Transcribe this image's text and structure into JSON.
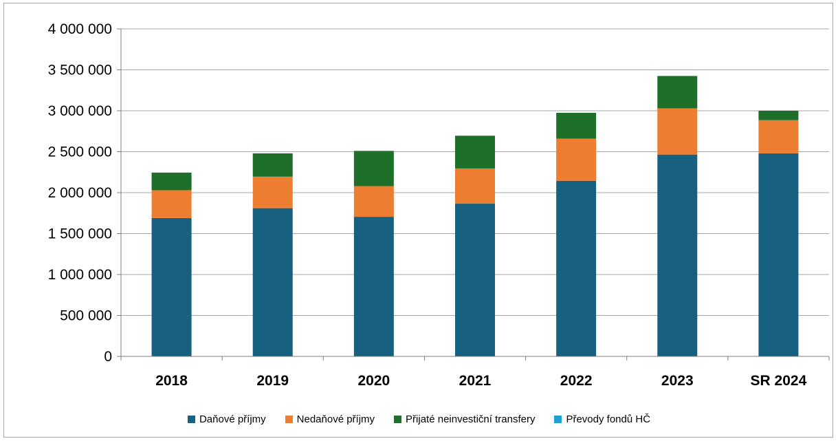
{
  "chart_data": {
    "type": "bar",
    "stacked": true,
    "categories": [
      "2018",
      "2019",
      "2020",
      "2021",
      "2022",
      "2023",
      "SR 2024"
    ],
    "series": [
      {
        "name": "Daňové příjmy",
        "color": "#17607f",
        "values": [
          1690000,
          1810000,
          1705000,
          1865000,
          2145000,
          2465000,
          2480000
        ]
      },
      {
        "name": "Nedaňové příjmy",
        "color": "#ed7d31",
        "values": [
          340000,
          385000,
          375000,
          430000,
          515000,
          565000,
          405000
        ]
      },
      {
        "name": "Přijaté neinvestiční transfery",
        "color": "#1e6f2a",
        "values": [
          215000,
          285000,
          430000,
          400000,
          315000,
          395000,
          115000
        ]
      },
      {
        "name": "Převody fondů HČ",
        "color": "#1ea0d2",
        "values": [
          0,
          0,
          0,
          0,
          0,
          0,
          0
        ]
      }
    ],
    "ylim": [
      0,
      4000000
    ],
    "yticks": [
      0,
      500000,
      1000000,
      1500000,
      2000000,
      2500000,
      3000000,
      3500000,
      4000000
    ],
    "ytick_labels": [
      "0",
      "500 000",
      "1 000 000",
      "1 500 000",
      "2 000 000",
      "2 500 000",
      "3 000 000",
      "3 500 000",
      "4 000 000"
    ],
    "grid": true,
    "legend_position": "bottom",
    "title": "",
    "xlabel": "",
    "ylabel": ""
  }
}
